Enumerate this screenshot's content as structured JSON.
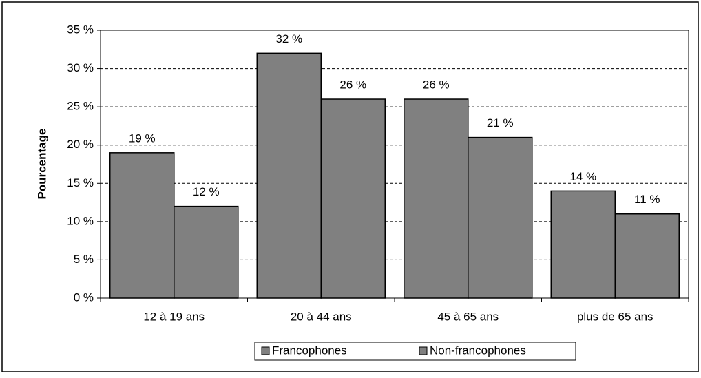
{
  "chart_data": {
    "type": "bar",
    "ylabel": "Pourcentage",
    "categories": [
      "12 à 19 ans",
      "20 à 44 ans",
      "45 à 65 ans",
      "plus de 65 ans"
    ],
    "series": [
      {
        "name": "Francophones",
        "color": "#808080",
        "values": [
          19,
          32,
          26,
          14
        ],
        "value_labels": [
          "19 %",
          "32 %",
          "26 %",
          "14 %"
        ]
      },
      {
        "name": "Non-francophones",
        "color": "#808080",
        "values": [
          12,
          26,
          21,
          11
        ],
        "value_labels": [
          "12 %",
          "26 %",
          "21 %",
          "11 %"
        ]
      }
    ],
    "ylim": [
      0,
      35
    ],
    "yticks": [
      {
        "value": 0,
        "label": "0 %"
      },
      {
        "value": 5,
        "label": "5 %"
      },
      {
        "value": 10,
        "label": "10 %"
      },
      {
        "value": 15,
        "label": "15 %"
      },
      {
        "value": 20,
        "label": "20 %"
      },
      {
        "value": 25,
        "label": "25 %"
      },
      {
        "value": 30,
        "label": "30 %"
      },
      {
        "value": 35,
        "label": "35 %"
      }
    ],
    "grid": true,
    "legend": "bottom"
  }
}
